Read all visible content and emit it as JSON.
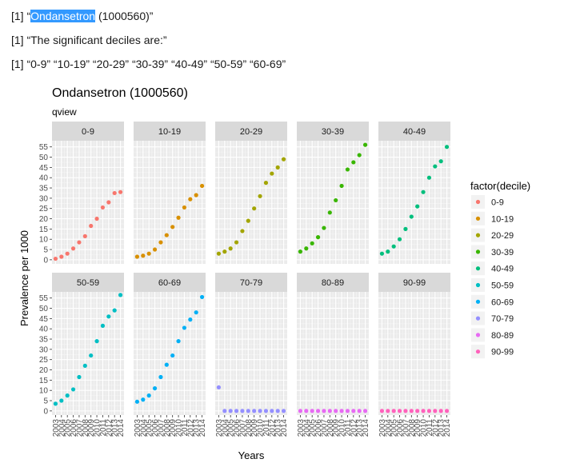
{
  "console": {
    "line1": {
      "prefix": "[1] “",
      "selected": "Ondansetron",
      "rest": " (1000560)”"
    },
    "line2": "[1] “The significant deciles are:”",
    "line3": "[1] “0-9” “10-19” “20-29” “30-39” “40-49” “50-59” “60-69”"
  },
  "chart_data": {
    "type": "scatter",
    "title": "Ondansetron (1000560)",
    "subtitle": "qview",
    "xlabel": "Years",
    "ylabel": "Prevalence per 1000",
    "x": [
      2003,
      2004,
      2005,
      2006,
      2007,
      2008,
      2009,
      2010,
      2011,
      2012,
      2013,
      2014
    ],
    "x_ticks": [
      "2003",
      "2004",
      "2005",
      "2006",
      "2007",
      "2008",
      "2009",
      "2010",
      "2011",
      "2012",
      "2013",
      "2014"
    ],
    "y_ticks": [
      0,
      5,
      10,
      15,
      20,
      25,
      30,
      35,
      40,
      45,
      50,
      55
    ],
    "ylim": [
      -2,
      58
    ],
    "grid": true,
    "legend": {
      "title": "factor(decile)",
      "placement": "right"
    },
    "series": [
      {
        "name": "0-9",
        "color": "#F8766D",
        "values": [
          0.5,
          1.5,
          3,
          5.5,
          8.5,
          11.5,
          16.5,
          20,
          25.5,
          28,
          32.5,
          33
        ]
      },
      {
        "name": "10-19",
        "color": "#D89000",
        "values": [
          1.5,
          2,
          3,
          5,
          8.5,
          12,
          16,
          20.5,
          25.5,
          29.5,
          31.5,
          36
        ]
      },
      {
        "name": "20-29",
        "color": "#A3A500",
        "values": [
          3,
          4,
          5.5,
          8.5,
          14,
          19,
          25,
          31,
          37.5,
          42,
          45,
          49
        ]
      },
      {
        "name": "30-39",
        "color": "#39B600",
        "values": [
          4,
          5.5,
          8,
          11,
          15.5,
          23,
          29,
          36,
          44,
          47.5,
          51,
          56
        ]
      },
      {
        "name": "40-49",
        "color": "#00BF7D",
        "values": [
          3,
          4,
          6.5,
          10,
          15,
          21,
          26,
          33,
          40,
          45.5,
          48,
          55
        ]
      },
      {
        "name": "50-59",
        "color": "#00BFC4",
        "values": [
          3.5,
          5,
          7.5,
          10.5,
          16.5,
          22,
          27,
          34,
          41.5,
          46,
          49,
          56.5
        ]
      },
      {
        "name": "60-69",
        "color": "#00B0F6",
        "values": [
          4.5,
          5.5,
          7.5,
          11,
          16.5,
          22.5,
          27,
          34,
          40.5,
          44.5,
          48,
          55.5
        ]
      },
      {
        "name": "70-79",
        "color": "#9590FF",
        "values": [
          11.5,
          0,
          0,
          0,
          0,
          0,
          0,
          0,
          0,
          0,
          0,
          0
        ]
      },
      {
        "name": "80-89",
        "color": "#E76BF3",
        "values": [
          0,
          0,
          0,
          0,
          0,
          0,
          0,
          0,
          0,
          0,
          0,
          0
        ]
      },
      {
        "name": "90-99",
        "color": "#FF62BC",
        "values": [
          0,
          0,
          0,
          0,
          0,
          0,
          0,
          0,
          0,
          0,
          0,
          0
        ]
      }
    ]
  }
}
